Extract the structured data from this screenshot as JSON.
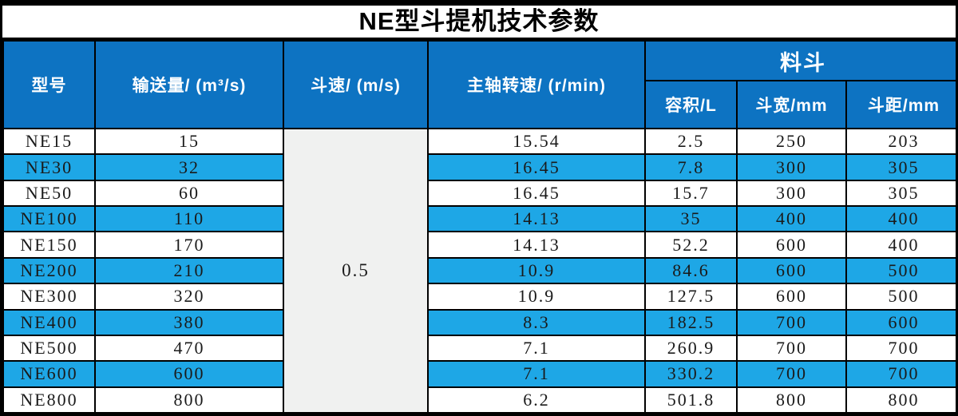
{
  "title": "NE型斗提机技术参数",
  "colors": {
    "header_blue": "#0d73c2",
    "row_blue": "#1ea7e6",
    "merged_cell_gray": "#f0f1f0",
    "border_black": "#000000",
    "header_text": "#ffffff",
    "data_text": "#1a1a1a",
    "title_text": "#000000",
    "title_background": "#ffffff"
  },
  "chart_data": {
    "type": "table",
    "title": "NE型斗提机技术参数",
    "headers": {
      "model": "型号",
      "capacity": "输送量/ (m³/s)",
      "bucket_speed": "斗速/ (m/s)",
      "shaft_speed": "主轴转速/ (r/min)",
      "bucket_group": "料斗",
      "volume": "容积/L",
      "bucket_width": "斗宽/mm",
      "bucket_pitch": "斗距/mm"
    },
    "column_group_note": "料斗 spans the three sub-columns 容积/L, 斗宽/mm, 斗距/mm",
    "merged_bucket_speed_value": "0.5",
    "merged_bucket_speed_note": "斗速 column is one merged cell covering all 11 data rows",
    "rows": [
      {
        "model": "NE15",
        "capacity": "15",
        "shaft_speed": "15.54",
        "volume": "2.5",
        "bucket_width": "250",
        "bucket_pitch": "203",
        "highlight": false
      },
      {
        "model": "NE30",
        "capacity": "32",
        "shaft_speed": "16.45",
        "volume": "7.8",
        "bucket_width": "300",
        "bucket_pitch": "305",
        "highlight": true
      },
      {
        "model": "NE50",
        "capacity": "60",
        "shaft_speed": "16.45",
        "volume": "15.7",
        "bucket_width": "300",
        "bucket_pitch": "305",
        "highlight": false
      },
      {
        "model": "NE100",
        "capacity": "110",
        "shaft_speed": "14.13",
        "volume": "35",
        "bucket_width": "400",
        "bucket_pitch": "400",
        "highlight": true
      },
      {
        "model": "NE150",
        "capacity": "170",
        "shaft_speed": "14.13",
        "volume": "52.2",
        "bucket_width": "600",
        "bucket_pitch": "400",
        "highlight": false
      },
      {
        "model": "NE200",
        "capacity": "210",
        "shaft_speed": "10.9",
        "volume": "84.6",
        "bucket_width": "600",
        "bucket_pitch": "500",
        "highlight": true
      },
      {
        "model": "NE300",
        "capacity": "320",
        "shaft_speed": "10.9",
        "volume": "127.5",
        "bucket_width": "600",
        "bucket_pitch": "500",
        "highlight": false
      },
      {
        "model": "NE400",
        "capacity": "380",
        "shaft_speed": "8.3",
        "volume": "182.5",
        "bucket_width": "700",
        "bucket_pitch": "600",
        "highlight": true
      },
      {
        "model": "NE500",
        "capacity": "470",
        "shaft_speed": "7.1",
        "volume": "260.9",
        "bucket_width": "700",
        "bucket_pitch": "700",
        "highlight": false
      },
      {
        "model": "NE600",
        "capacity": "600",
        "shaft_speed": "7.1",
        "volume": "330.2",
        "bucket_width": "700",
        "bucket_pitch": "700",
        "highlight": true
      },
      {
        "model": "NE800",
        "capacity": "800",
        "shaft_speed": "6.2",
        "volume": "501.8",
        "bucket_width": "800",
        "bucket_pitch": "800",
        "highlight": false
      }
    ]
  }
}
